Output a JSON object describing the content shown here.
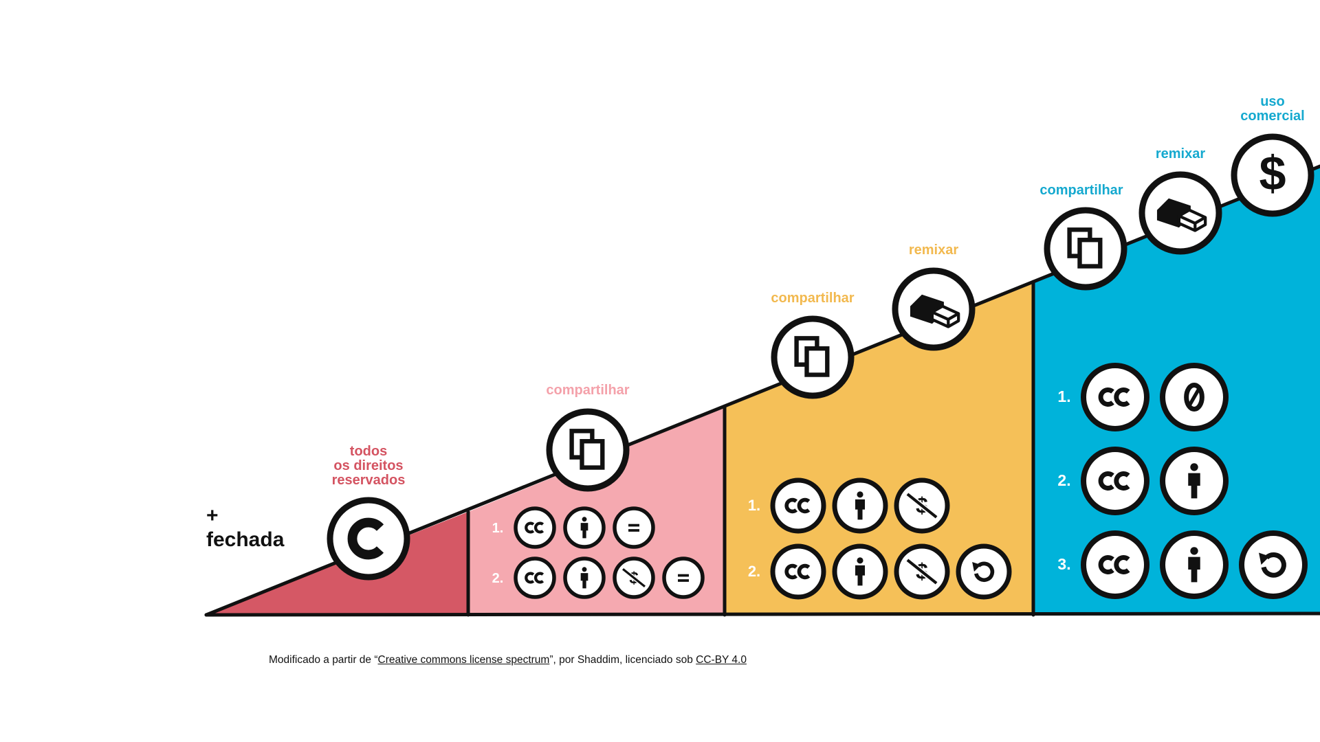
{
  "colors": {
    "red": "#d55865",
    "pink": "#f5a9b0",
    "yellow": "#f5c058",
    "blue": "#00b3da",
    "red_text": "#d45361",
    "pink_text": "#f4a1aa",
    "yellow_text": "#f2b94f",
    "blue_text": "#15a9cf",
    "ink": "#111111"
  },
  "start": {
    "plus": "+",
    "label": "fechada"
  },
  "sections": [
    {
      "id": "red",
      "label_lines": [
        "todos",
        "os direitos",
        "reservados"
      ],
      "icon": "copyright-icon"
    },
    {
      "id": "pink",
      "label": "compartilhar",
      "icon": "share-icon",
      "licenses": [
        {
          "num": "1.",
          "icons": [
            "cc-icon",
            "by-icon",
            "nd-icon"
          ]
        },
        {
          "num": "2.",
          "icons": [
            "cc-icon",
            "by-icon",
            "nc-icon",
            "nd-icon"
          ]
        }
      ]
    },
    {
      "id": "yellow",
      "labels": [
        "compartilhar",
        "remixar"
      ],
      "icons": [
        "share-icon",
        "remix-icon"
      ],
      "licenses": [
        {
          "num": "1.",
          "icons": [
            "cc-icon",
            "by-icon",
            "nc-icon"
          ]
        },
        {
          "num": "2.",
          "icons": [
            "cc-icon",
            "by-icon",
            "nc-icon",
            "sa-icon"
          ]
        }
      ]
    },
    {
      "id": "blue",
      "labels": [
        "compartilhar",
        "remixar"
      ],
      "commercial_label_lines": [
        "uso",
        "comercial"
      ],
      "icons": [
        "share-icon",
        "remix-icon",
        "commercial-icon"
      ],
      "licenses": [
        {
          "num": "1.",
          "icons": [
            "cc-icon",
            "zero-icon"
          ]
        },
        {
          "num": "2.",
          "icons": [
            "cc-icon",
            "by-icon"
          ]
        },
        {
          "num": "3.",
          "icons": [
            "cc-icon",
            "by-icon",
            "sa-icon"
          ]
        }
      ]
    }
  ],
  "footer": {
    "prefix": "Modificado a partir de “",
    "link_text": "Creative commons license spectrum",
    "middle": "”, por Shaddim, licenciado sob ",
    "license_text": "CC-BY 4.0"
  }
}
